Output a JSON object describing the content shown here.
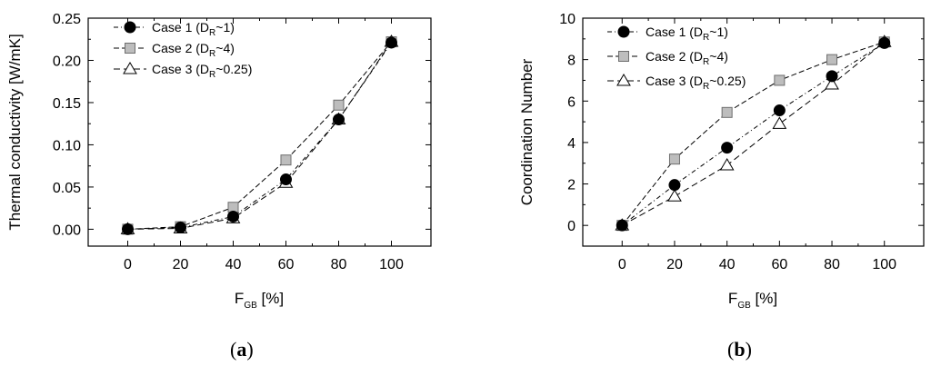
{
  "chart_data": [
    {
      "type": "line",
      "panel": "a",
      "caption_letter": "a",
      "xlabel_main": "F",
      "xlabel_sub": "GB",
      "xlabel_unit": "[%]",
      "ylabel": "Thermal conductivity [W/mK]",
      "xlim": [
        -15,
        115
      ],
      "ylim": [
        -0.02,
        0.25
      ],
      "x_ticks": [
        0,
        20,
        40,
        60,
        80,
        100
      ],
      "y_ticks": [
        0.0,
        0.05,
        0.1,
        0.15,
        0.2,
        0.25
      ],
      "y_tick_labels": [
        "0.00",
        "0.05",
        "0.10",
        "0.15",
        "0.20",
        "0.25"
      ],
      "x": [
        0,
        20,
        40,
        60,
        80,
        100
      ],
      "series": [
        {
          "name": "Case 1",
          "legend_main": "Case 1 (D",
          "legend_sub": "R",
          "legend_tail": "~1)",
          "marker": "circle",
          "values": [
            0.0,
            0.002,
            0.015,
            0.059,
            0.13,
            0.221
          ]
        },
        {
          "name": "Case 2",
          "legend_main": "Case 2 (D",
          "legend_sub": "R",
          "legend_tail": "~4)",
          "marker": "square",
          "values": [
            0.0,
            0.003,
            0.026,
            0.082,
            0.147,
            0.222
          ]
        },
        {
          "name": "Case 3",
          "legend_main": "Case 3 (D",
          "legend_sub": "R",
          "legend_tail": "~0.25)",
          "marker": "triangle",
          "values": [
            0.0,
            0.001,
            0.013,
            0.055,
            0.13,
            0.222
          ]
        }
      ]
    },
    {
      "type": "line",
      "panel": "b",
      "caption_letter": "b",
      "xlabel_main": "F",
      "xlabel_sub": "GB",
      "xlabel_unit": "[%]",
      "ylabel": "Coordination Number",
      "xlim": [
        -15,
        115
      ],
      "ylim": [
        -1,
        10
      ],
      "x_ticks": [
        0,
        20,
        40,
        60,
        80,
        100
      ],
      "y_ticks": [
        0,
        2,
        4,
        6,
        8,
        10
      ],
      "y_tick_labels": [
        "0",
        "2",
        "4",
        "6",
        "8",
        "10"
      ],
      "x": [
        0,
        20,
        40,
        60,
        80,
        100
      ],
      "series": [
        {
          "name": "Case 1",
          "legend_main": "Case 1 (D",
          "legend_sub": "R",
          "legend_tail": "~1)",
          "marker": "circle",
          "values": [
            0.0,
            1.95,
            3.75,
            5.55,
            7.2,
            8.8
          ]
        },
        {
          "name": "Case 2",
          "legend_main": "Case 2 (D",
          "legend_sub": "R",
          "legend_tail": "~4)",
          "marker": "square",
          "values": [
            0.0,
            3.2,
            5.45,
            7.0,
            8.0,
            8.85
          ]
        },
        {
          "name": "Case 3",
          "legend_main": "Case 3 (D",
          "legend_sub": "R",
          "legend_tail": "~0.25)",
          "marker": "triangle",
          "values": [
            0.0,
            1.4,
            2.9,
            4.9,
            6.8,
            8.85
          ]
        }
      ]
    }
  ]
}
